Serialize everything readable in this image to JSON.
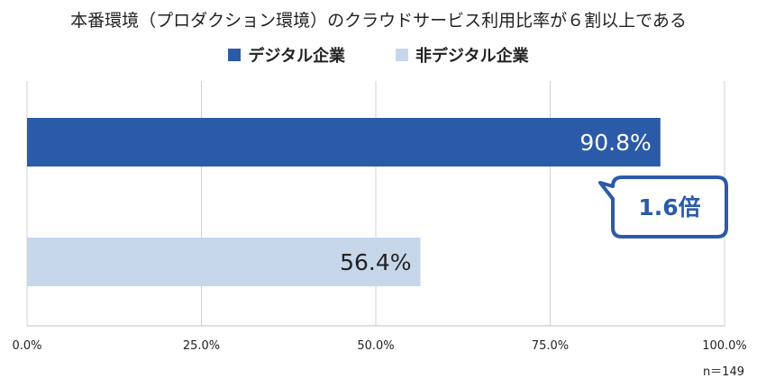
{
  "chart_data": {
    "type": "bar",
    "orientation": "horizontal",
    "title": "本番環境（プロダクション環境）のクラウドサービス利用比率が６割以上である",
    "series": [
      {
        "name": "デジタル企業",
        "value": 90.8,
        "value_label": "90.8%",
        "color": "#2b5aa8"
      },
      {
        "name": "非デジタル企業",
        "value": 56.4,
        "value_label": "56.4%",
        "color": "#c6d7ea"
      }
    ],
    "xlim": [
      0,
      100
    ],
    "ticks": [
      0,
      25,
      50,
      75,
      100
    ],
    "tick_labels": [
      "0.0%",
      "25.0%",
      "50.0%",
      "75.0%",
      "100.0%"
    ],
    "grid": true,
    "legend_position": "top",
    "annotation": "1.6倍",
    "sample_size": "n＝149"
  },
  "colors": {
    "callout_border": "#2b5aa8",
    "callout_text": "#2b5aa8",
    "grid": "#d0d0d0"
  }
}
